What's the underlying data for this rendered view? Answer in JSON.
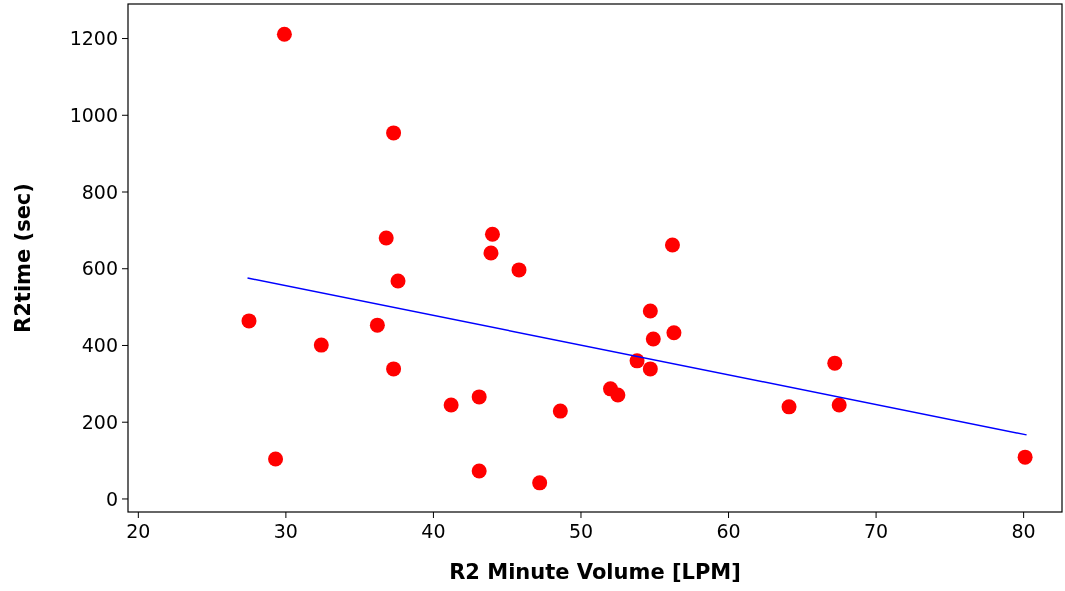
{
  "chart_data": {
    "type": "scatter",
    "xlabel": "R2 Minute Volume [LPM]",
    "ylabel": "R2time (sec)",
    "xlim": [
      19.3,
      82.6
    ],
    "ylim": [
      -34,
      1290
    ],
    "xticks": [
      20,
      30,
      40,
      50,
      60,
      70,
      80
    ],
    "yticks": [
      0,
      200,
      400,
      600,
      800,
      1000,
      1200
    ],
    "grid": false,
    "marker": "circle",
    "series": [
      {
        "color": "#ff0000",
        "x": [
          29.9,
          37.3,
          36.8,
          44.0,
          43.9,
          45.8,
          37.6,
          56.2,
          27.5,
          36.2,
          32.4,
          54.7,
          54.9,
          56.3,
          53.8,
          54.7,
          37.3,
          52.0,
          52.5,
          67.2,
          67.5,
          64.1,
          41.2,
          43.1,
          48.6,
          29.3,
          43.1,
          47.2,
          80.1
        ],
        "values": [
          1211,
          954,
          680,
          690,
          641,
          597,
          568,
          662,
          464,
          453,
          401,
          490,
          417,
          433,
          360,
          339,
          339,
          287,
          271,
          354,
          245,
          240,
          245,
          266,
          229,
          104,
          73,
          42,
          109
        ]
      },
      {
        "type": "line",
        "color": "#0000ff",
        "marker": "none",
        "x": [
          27.4,
          80.2
        ],
        "values": [
          576,
          167
        ]
      }
    ]
  }
}
